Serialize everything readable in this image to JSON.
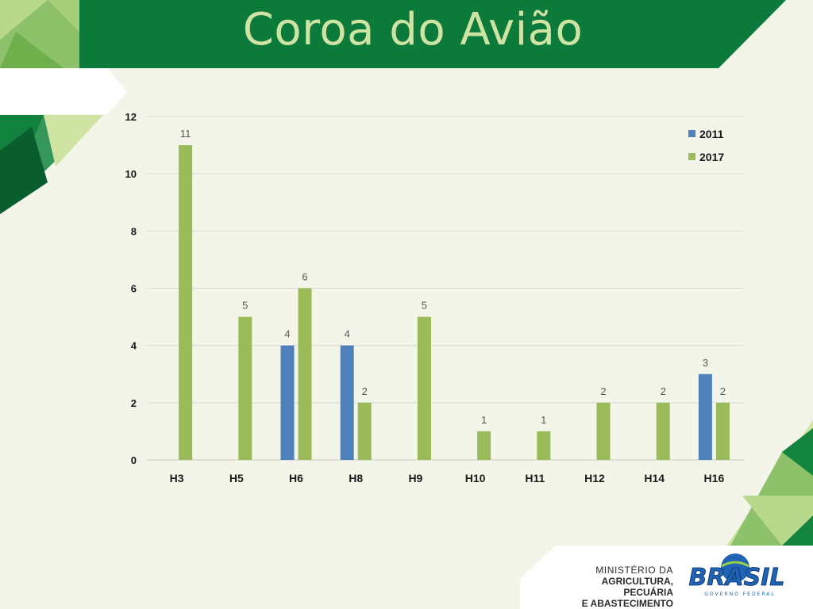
{
  "title": "Coroa do Avião",
  "footer": {
    "ministry_line1": "MINISTÉRIO DA",
    "ministry_line2": "AGRICULTURA, PECUÁRIA",
    "ministry_line3": "E ABASTECIMENTO",
    "brand": "BRASIL",
    "brand_sub": "GOVERNO FEDERAL"
  },
  "colors": {
    "dark_green": "#0b7a3a",
    "light_green": "#8dc26a",
    "series_2011": "#4f81bd",
    "series_2017": "#9bbb59",
    "background": "#f2f5e8"
  },
  "chart_data": {
    "type": "bar",
    "title": "",
    "xlabel": "",
    "ylabel": "",
    "categories": [
      "H3",
      "H5",
      "H6",
      "H8",
      "H9",
      "H10",
      "H11",
      "H12",
      "H14",
      "H16"
    ],
    "series": [
      {
        "name": "2011",
        "color": "#4f81bd",
        "values": [
          null,
          null,
          4,
          4,
          null,
          null,
          null,
          null,
          null,
          3
        ]
      },
      {
        "name": "2017",
        "color": "#9bbb59",
        "values": [
          11,
          5,
          6,
          2,
          5,
          1,
          1,
          2,
          2,
          2
        ]
      }
    ],
    "ylim": [
      0,
      12
    ],
    "yticks": [
      0,
      2,
      4,
      6,
      8,
      10,
      12
    ],
    "grid": true,
    "legend": "top-right",
    "data_labels": true
  }
}
